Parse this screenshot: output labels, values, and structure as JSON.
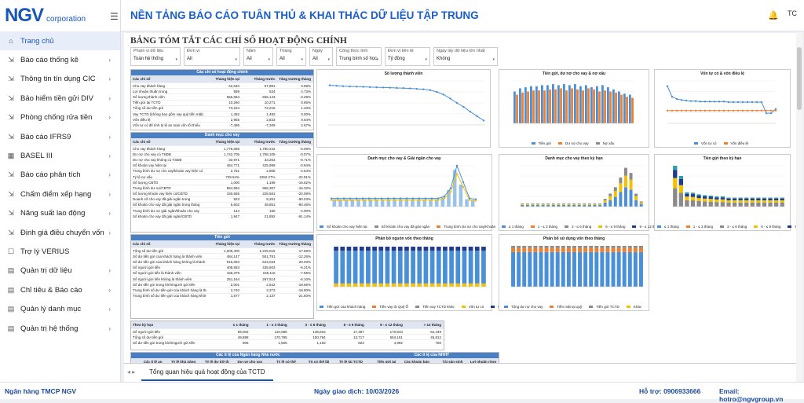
{
  "app": {
    "logo": "NGV",
    "logo_sub": "corporation",
    "title": "NỀN TẢNG BÁO CÁO TUÂN THỦ & KHAI THÁC DỮ LIỆU TẬP TRUNG",
    "avatar": "TC"
  },
  "sidebar": {
    "items": [
      {
        "label": "Trang chủ",
        "icon": "home-icon",
        "glyph": "⌂",
        "chev": ""
      },
      {
        "label": "Báo cáo thống kê",
        "icon": "chart-icon",
        "glyph": "⇲",
        "chev": "›"
      },
      {
        "label": "Thông tin tín dụng CIC",
        "icon": "chart-icon",
        "glyph": "⇲",
        "chev": "›"
      },
      {
        "label": "Bảo hiểm tiền gửi DIV",
        "icon": "chart-icon",
        "glyph": "⇲",
        "chev": "›"
      },
      {
        "label": "Phòng chống rửa tiền",
        "icon": "chart-icon",
        "glyph": "⇲",
        "chev": "›"
      },
      {
        "label": "Báo cáo IFRS9",
        "icon": "chart-icon",
        "glyph": "⇲",
        "chev": "›"
      },
      {
        "label": "BASEL III",
        "icon": "basel-icon",
        "glyph": "▦",
        "chev": "›"
      },
      {
        "label": "Báo cáo phân tích",
        "icon": "chart-icon",
        "glyph": "⇲",
        "chev": "›"
      },
      {
        "label": "Chấm điểm xếp hạng",
        "icon": "chart-icon",
        "glyph": "⇲",
        "chev": "›"
      },
      {
        "label": "Năng suất lao động",
        "icon": "chart-icon",
        "glyph": "⇲",
        "chev": "›"
      },
      {
        "label": "Định giá điều chuyển vốn",
        "icon": "chart-icon",
        "glyph": "⇲",
        "chev": "›"
      },
      {
        "label": "Trợ lý VERIUS",
        "icon": "assistant-icon",
        "glyph": "☐",
        "chev": ""
      },
      {
        "label": "Quản trị dữ liệu",
        "icon": "data-icon",
        "glyph": "▤",
        "chev": "›"
      },
      {
        "label": "Chỉ tiêu & Báo cáo",
        "icon": "report-icon",
        "glyph": "▤",
        "chev": "›"
      },
      {
        "label": "Quản lý danh mục",
        "icon": "catalog-icon",
        "glyph": "▤",
        "chev": "›"
      },
      {
        "label": "Quản trị hệ thống",
        "icon": "system-icon",
        "glyph": "▤",
        "chev": "›"
      }
    ]
  },
  "page": {
    "title": "BẢNG TÓM TẮT CÁC CHỈ SỐ HOẠT ĐỘNG CHÍNH"
  },
  "filters": [
    {
      "label": "Phạm vi dữ liệu",
      "value": "Toàn hệ thống"
    },
    {
      "label": "Đơn vị",
      "value": "All"
    },
    {
      "label": "Năm",
      "value": "All"
    },
    {
      "label": "Tháng",
      "value": "All"
    },
    {
      "label": "Ngày",
      "value": "All"
    },
    {
      "label": "Công thức tính",
      "value": "Trung bình số học"
    },
    {
      "label": "Đơn vị tiền tệ",
      "value": "Tỷ đồng"
    },
    {
      "label": "Ngày lấy dữ liệu lớn nhất",
      "value": "Không"
    }
  ],
  "table1": {
    "title": "Các chỉ số hoạt động chính",
    "headers": [
      "Các chỉ số",
      "Tháng hiện tại",
      "Tháng trước",
      "Tăng trưởng tháng"
    ],
    "rows": [
      [
        "Cho vay khách hàng",
        "62,640",
        "57,881",
        "0.08%"
      ],
      [
        "Lợi nhuận thuần trong",
        "589",
        "534",
        "4.73%"
      ],
      [
        "Số lượng thành viên",
        "666,684",
        "656,143",
        "-3.29%"
      ],
      [
        "Tiền gửi tại TCTD",
        "10,260",
        "10,271",
        "0.65%"
      ],
      [
        "Tổng số dư tiền gửi",
        "73,224",
        "72,216",
        "1.40%"
      ],
      [
        "Vay TCTD (không bao gồm vay quỹ tiền mặt)",
        "1,482",
        "1,482",
        "0.00%"
      ],
      [
        "Vốn điều lệ",
        "2,955",
        "2,833",
        "0.64%"
      ],
      [
        "Vốn tự có để tính tỷ lệ an toàn vốn tối thiểu",
        "-7,485",
        "-7,209",
        "2.67%"
      ]
    ]
  },
  "table2": {
    "title": "Danh mục cho vay",
    "headers": [
      "Các chỉ số",
      "Tháng hiện tại",
      "Tháng trước",
      "Tăng trưởng tháng"
    ],
    "rows": [
      [
        "Cho vay khách hàng",
        "1,775,059",
        "1,780,242",
        "-0.08%"
      ],
      [
        "Dư nợ cho vay có TSĐB",
        "1,742,705",
        "1,758,109",
        "-0.07%"
      ],
      [
        "Dư nợ cho vay không có TSĐB",
        "32,971",
        "33,253",
        "-0.71%"
      ],
      [
        "Số khoản vay hiện tại",
        "454,771",
        "425,999",
        "-0.94%"
      ],
      [
        "Trung bình dư nợ cho vay/khoản vay hiện có",
        "2,751",
        "2,805",
        "-4.64%"
      ],
      [
        "Tỷ lệ nợ xấu",
        "729.54%",
        "1052.27%",
        "-22.81%"
      ],
      [
        "Số lượng CBTD",
        "1,000",
        "1,199",
        "-16.62%"
      ],
      [
        "Trung bình dư nợ/CBTD",
        "854,994",
        "966,307",
        "-16.32%"
      ],
      [
        "Số lượng khoản vay hiện có/CBTD",
        "150,665",
        "228,581",
        "-20.09%"
      ],
      [
        "Doanh số cho vay đã giải ngân trong",
        "823",
        "8,261",
        "-90.03%"
      ],
      [
        "Số khoản cho vay đã giải ngân trong tháng",
        "5,602",
        "48,851",
        "-90.46%"
      ],
      [
        "Trung bình dư nợ giải ngân/khoản cho vay",
        "144",
        "150",
        "-4.00%"
      ],
      [
        "Số khoản cho vay đã giải ngân/CBTD",
        "1,947",
        "21,892",
        "-91.14%"
      ]
    ]
  },
  "table3": {
    "title": "Tiền gửi",
    "headers": [
      "Các chỉ số",
      "Tháng hiện tại",
      "Tháng trước",
      "Tăng trưởng tháng"
    ],
    "rows": [
      [
        "Tổng số dư tiền gửi",
        "1,009,400",
        "1,225,015",
        "-17.59%"
      ],
      [
        "Số dư tiền gửi của khách hàng là thành viên",
        "484,147",
        "551,781",
        "-12.26%"
      ],
      [
        "Số dư tiền gửi của khách hàng không là thành viên",
        "515,053",
        "644,034",
        "-20.03%"
      ],
      [
        "Số người gửi tiền",
        "408,583",
        "435,603",
        "-6.21%"
      ],
      [
        "Số người gửi tiền là thành viên",
        "155,379",
        "165,110",
        "-7.55%"
      ],
      [
        "Số người gửi tiền không là thành viên",
        "251,164",
        "267,514",
        "-6.10%"
      ],
      [
        "Số dư tiền gửi trung bình/người gửi tiền",
        "2,001",
        "2,542",
        "-18.65%"
      ],
      [
        "Trung bình số dư tiền gửi của khách hàng là thành viên / Tổng số người gửi là thành viên",
        "2,740",
        "3,373",
        "-18.80%"
      ],
      [
        "Trung bình số dư tiền gửi của khách hàng không là thành viên / Tổng số người gửi tiền không là thành viên",
        "1,677",
        "2,137",
        "-21.50%"
      ]
    ]
  },
  "table4": {
    "headers": [
      "Theo kỳ hạn",
      "≤ 1 tháng",
      "1 - ≤ 3 tháng",
      "3 - ≤ 6 tháng",
      "6 - ≤ 9 tháng",
      "9 - ≤ 12 tháng",
      "> 12 tháng"
    ],
    "rows": [
      [
        "Số người gửi tiền",
        "69,002",
        "110,085",
        "136,816",
        "17,487",
        "170,843",
        "64,449"
      ],
      [
        "Tổng số dư tiền gửi",
        "49,888",
        "170,785",
        "150,794",
        "13,717",
        "554,161",
        "45,812"
      ],
      [
        "Số dư tiền gửi trung bình/người gửi tiền",
        "805",
        "1,506",
        "1,102",
        "823",
        "4,992",
        "750"
      ]
    ]
  },
  "table5": {
    "title_left": "Các tỉ lệ của Ngân hàng Nhà nước",
    "title_right": "Các tỉ lệ của NHHT",
    "headers": [
      "Các tỉ lệ an",
      "Tỷ lệ khả năng",
      "Tỷ lệ dự trữ th",
      "Dư nợ cho vay",
      "Tỷ lệ có thể",
      "TS có thể lãi",
      "Tỷ lệ tài TCTD",
      "Tiền gửi tại",
      "Các khoản bảo",
      "Tài sản sinh",
      "Lợi nhuận ròng"
    ]
  },
  "charts": {
    "c1": {
      "title": "Số lượng thành viên"
    },
    "c2": {
      "title": "Tiền gửi, dư nợ cho vay & nợ xấu",
      "legend": [
        "Tiền gửi",
        "Dư nợ cho vay",
        "Nợ xấu"
      ]
    },
    "c3": {
      "title": "Vốn tự có & vốn điều lệ",
      "legend": [
        "Vốn tự có",
        "Vốn điều lệ"
      ]
    },
    "c4": {
      "title": "Danh mục cho vay & Giải ngân cho vay",
      "legend": [
        "Số khoản cho vay hiện tại",
        "Số khoản cho vay đã giải ngân",
        "Trung bình dư nợ cho vay/Khoản",
        "TB giải ngân cho vay/khoản"
      ]
    },
    "c5": {
      "title": "Danh mục cho vay theo kỳ hạn",
      "legend": [
        "≤ 1 tháng",
        "1 - ≤ 3 tháng",
        "3 - ≤ 6 tháng",
        "6 - ≤ 9 tháng",
        "9 - ≤ 12 tháng",
        "> 12 tháng"
      ]
    },
    "c6": {
      "title": "Tiền gửi theo kỳ hạn",
      "legend": [
        "≤ 1 tháng",
        "1 - ≤ 3 tháng",
        "3 - ≤ 6 tháng",
        "6 - ≤ 9 tháng",
        "9 - ≤ 12 tháng",
        "> 12 tháng"
      ]
    },
    "c7": {
      "title": "Phân bổ nguồn vốn theo tháng",
      "legend": [
        "Tiền gửi của khách hàng",
        "Tiền vay từ Quỹ Ổ",
        "Tiền vay TCTD khác",
        "Vốn tự có",
        "Khác"
      ]
    },
    "c8": {
      "title": "Phân bổ sử dụng vốn theo tháng",
      "legend": [
        "Tổng dư nợ cho vay",
        "Tiền mặt tại quỹ",
        "Tiền gửi TCTD",
        "Khác"
      ]
    }
  },
  "chart_data": [
    {
      "type": "line",
      "title": "Số lượng thành viên",
      "values": [
        880,
        878,
        876,
        875,
        874,
        873,
        872,
        871,
        870,
        869,
        868,
        867,
        866,
        864,
        862,
        858,
        850,
        838,
        820,
        800,
        782,
        760,
        740,
        720
      ]
    },
    {
      "type": "bar",
      "title": "Tiền gửi, dư nợ cho vay & nợ xấu",
      "series": [
        {
          "name": "Tiền gửi",
          "values": [
            30,
            33,
            34,
            35,
            35,
            36,
            36,
            37,
            36,
            37,
            36,
            37,
            35,
            36,
            34,
            35,
            36,
            34,
            32,
            30,
            28,
            27
          ]
        },
        {
          "name": "Dư nợ cho vay",
          "values": [
            27,
            29,
            30,
            31,
            31,
            31,
            32,
            32,
            33,
            31,
            33,
            32,
            31,
            33,
            32,
            30,
            31,
            30,
            29,
            27,
            25,
            24
          ]
        }
      ]
    },
    {
      "type": "line",
      "title": "Vốn tự có & vốn điều lệ",
      "series": [
        {
          "name": "Vốn tự có",
          "values": [
            70,
            50,
            46,
            44,
            43,
            42,
            42,
            41,
            41,
            41,
            41,
            41,
            41,
            40,
            40,
            40,
            40,
            40,
            40,
            40,
            40,
            19,
            19,
            27
          ]
        },
        {
          "name": "Vốn điều lệ",
          "values": [
            24,
            24,
            24,
            24,
            24,
            24,
            24,
            24,
            24,
            24,
            24,
            24,
            24,
            24,
            24,
            24,
            24,
            24,
            24,
            24,
            24,
            24,
            24,
            24
          ]
        }
      ]
    },
    {
      "type": "line",
      "title": "Danh mục cho vay & Giải ngân cho vay",
      "values": [
        20,
        20,
        20,
        20,
        20,
        20,
        20,
        20,
        20,
        20,
        20,
        20,
        20,
        20,
        20,
        20,
        20,
        20,
        25,
        45,
        100,
        60,
        20,
        18
      ]
    },
    {
      "type": "bar",
      "title": "Danh mục cho vay theo kỳ hạn",
      "values": [
        5,
        5,
        5,
        5,
        5,
        5,
        5,
        5,
        5,
        5,
        5,
        5,
        5,
        5,
        5,
        5,
        12,
        20,
        30,
        45,
        60,
        52,
        20,
        8
      ]
    },
    {
      "type": "bar",
      "title": "Tiền gửi theo kỳ hạn",
      "values": [
        100,
        75,
        35,
        34,
        30,
        28,
        27,
        25,
        25,
        22,
        22,
        22,
        22,
        22,
        22,
        22,
        22,
        22,
        22
      ]
    },
    {
      "type": "bar",
      "title": "Phân bổ nguồn vốn theo tháng",
      "values": [
        80,
        80,
        80,
        80,
        80,
        80,
        80,
        80,
        80,
        80,
        80,
        80,
        80,
        80,
        80,
        80,
        80,
        80,
        80,
        80,
        80,
        80,
        80,
        80
      ]
    },
    {
      "type": "bar",
      "title": "Phân bổ sử dụng vốn theo tháng",
      "values": [
        85,
        85,
        85,
        85,
        85,
        85,
        85,
        85,
        85,
        85,
        85,
        85,
        85,
        85,
        85,
        85,
        85,
        85,
        85,
        85,
        85,
        85,
        85,
        85
      ]
    }
  ],
  "tabs": {
    "active": "Tổng quan hiệu quả hoạt động của TCTD"
  },
  "footer": {
    "bank": "Ngân hàng TMCP NGV",
    "date_label": "Ngày giao dịch: 10/03/2026",
    "support": "Hỗ trợ: 0906933666",
    "email": "Email: hotro@ngvgroup.vn"
  },
  "colors": {
    "blue": "#1a55b8",
    "chart_blue": "#4a90d9",
    "orange": "#f08030",
    "gray": "#8a8a8a",
    "yellow": "#f5c000",
    "navy": "#1f3a8f",
    "teal": "#2a9fa8"
  }
}
